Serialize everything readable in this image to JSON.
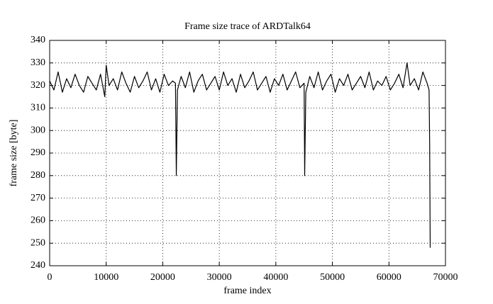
{
  "chart_data": {
    "type": "line",
    "title": "Frame size trace of ARDTalk64",
    "x_label": "frame index",
    "y_label": "frame size [byte]",
    "x": [
      0,
      750,
      1500,
      2250,
      3000,
      3750,
      4500,
      5250,
      6000,
      6750,
      7500,
      8250,
      9000,
      9750,
      10000,
      10500,
      11250,
      12000,
      12750,
      13500,
      14250,
      15000,
      15750,
      16500,
      17250,
      18000,
      18750,
      19500,
      20250,
      21000,
      21750,
      22250,
      22400,
      22600,
      23250,
      24000,
      24750,
      25500,
      26250,
      27000,
      27750,
      28500,
      29250,
      30000,
      30750,
      31500,
      32250,
      33000,
      33750,
      34500,
      35250,
      36000,
      36750,
      37500,
      38250,
      39000,
      39750,
      40500,
      41250,
      42000,
      42750,
      43500,
      44250,
      45000,
      45100,
      45300,
      46000,
      46750,
      47500,
      48250,
      49000,
      49750,
      50500,
      51250,
      52000,
      52750,
      53500,
      54250,
      55000,
      55750,
      56500,
      57250,
      58000,
      58750,
      59500,
      60250,
      61000,
      61750,
      62500,
      63200,
      63750,
      64500,
      65250,
      66000,
      66750,
      67100,
      67200,
      67300
    ],
    "values": [
      322,
      318,
      326,
      317,
      323,
      319,
      325,
      320,
      317,
      324,
      321,
      318,
      325,
      315,
      329,
      320,
      323,
      318,
      326,
      321,
      317,
      324,
      319,
      322,
      326,
      318,
      323,
      317,
      325,
      320,
      322,
      321,
      280,
      318,
      324,
      319,
      326,
      317,
      322,
      325,
      318,
      321,
      324,
      318,
      326,
      320,
      323,
      317,
      325,
      319,
      322,
      326,
      318,
      321,
      324,
      317,
      323,
      320,
      325,
      318,
      322,
      326,
      319,
      321,
      280,
      317,
      324,
      319,
      326,
      318,
      322,
      325,
      317,
      323,
      320,
      325,
      318,
      321,
      324,
      319,
      326,
      318,
      322,
      320,
      324,
      318,
      321,
      325,
      319,
      330,
      320,
      323,
      318,
      326,
      321,
      318,
      295,
      248
    ],
    "color": "#000000",
    "xlim": [
      0,
      70000
    ],
    "xticks": [
      0,
      10000,
      20000,
      30000,
      40000,
      50000,
      60000,
      70000
    ],
    "ylim": [
      240,
      340
    ],
    "yticks": [
      240,
      250,
      260,
      270,
      280,
      290,
      300,
      310,
      320,
      330,
      340
    ],
    "grid": true
  }
}
